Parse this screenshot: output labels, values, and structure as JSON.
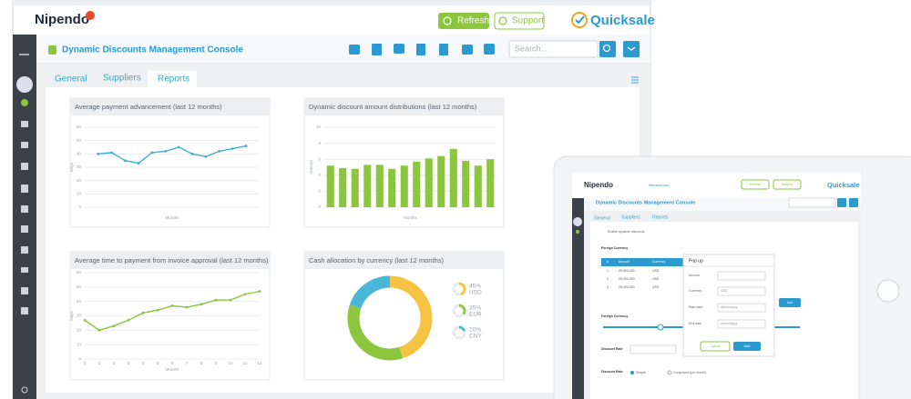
{
  "header": {
    "logo": "Nipendo",
    "refresh": "Refresh",
    "support": "Support",
    "brand": "Quicksale"
  },
  "console": {
    "title": "Dynamic Discounts Management Console",
    "search_placeholder": "Search..."
  },
  "tabs": [
    "General",
    "Suppliers",
    "Reports"
  ],
  "chart_data": [
    {
      "type": "line",
      "title": "Average payment advancement (last 12 months)",
      "x": [
        1,
        2,
        3,
        4,
        5,
        6,
        7,
        8,
        9,
        10,
        11,
        12
      ],
      "xlim": [
        0,
        13
      ],
      "values": [
        40,
        41,
        35,
        33,
        41,
        42,
        45,
        40,
        38,
        42,
        44,
        46
      ],
      "color": "#3fb0d0",
      "ylim": [
        0,
        60
      ],
      "yticks": [
        0,
        10,
        20,
        30,
        40,
        50,
        60
      ],
      "x_label": "Months",
      "y_label": "Days",
      "grid": true
    },
    {
      "type": "bar",
      "title": "Dynamic discount amount distributions (last 12 months)",
      "categories": [
        null,
        null,
        null,
        null,
        null,
        null,
        null,
        null,
        null,
        null,
        null,
        null,
        null,
        null
      ],
      "values": [
        5.2,
        4.9,
        4.8,
        5.3,
        5.3,
        4.8,
        5.2,
        5.7,
        6.1,
        6.4,
        7.3,
        5.8,
        5.2,
        6.0
      ],
      "color": "#8cc63f",
      "ylim": [
        0,
        10
      ],
      "yticks": [
        0,
        2,
        4,
        6,
        8,
        10
      ],
      "x_label": "Months",
      "y_label": "Amount",
      "grid": true
    },
    {
      "type": "line",
      "title": "Average time to payment from invoice approval (last 12 months)",
      "x": [
        0,
        1,
        2,
        3,
        4,
        5,
        6,
        7,
        8,
        9,
        10,
        11,
        12
      ],
      "xlim": [
        0,
        12
      ],
      "xticks": [
        0,
        1,
        2,
        3,
        4,
        5,
        6,
        7,
        8,
        9,
        10,
        11,
        12
      ],
      "values": [
        27,
        20,
        23,
        27,
        32,
        34,
        37,
        36,
        38,
        41,
        41,
        45,
        47
      ],
      "color": "#8cc63f",
      "ylim": [
        0,
        60
      ],
      "yticks": [
        0,
        10,
        20,
        30,
        40,
        50,
        60
      ],
      "x_label": "Months",
      "y_label": "Days",
      "grid": true
    },
    {
      "type": "donut",
      "title": "Cash allocation by currency (last 12 months)",
      "categories": [
        "USD",
        "EUR",
        "CNY"
      ],
      "values": [
        45,
        35,
        20
      ],
      "value_labels": [
        "45%",
        "35%",
        "20%"
      ],
      "colors": [
        "#f6c343",
        "#8cc63f",
        "#4ab6d8"
      ]
    }
  ],
  "tablet": {
    "logo": "Nipendo",
    "welcome": "Welcome back,",
    "refresh": "Refresh",
    "support": "Support",
    "brand": "Quicksale",
    "title": "Dynamic Discounts Management Console",
    "tabs": [
      "General",
      "Suppliers",
      "Reports"
    ],
    "enable": "Enable dynamic discounts",
    "foreign_currency": "Foreign Currency",
    "table_headers": [
      "#",
      "Amount",
      "Currency"
    ],
    "rows": [
      [
        "1",
        "25,000,000",
        "USD"
      ],
      [
        "2",
        "25,000,000",
        "USD"
      ],
      [
        "3",
        "25,000,000",
        "USD"
      ]
    ],
    "popup": {
      "title": "Pop up",
      "fields": [
        "Amount",
        "Currency",
        "Start date",
        "End date"
      ],
      "currency_value": "USD",
      "date_placeholder": "dd/mm/yyyy",
      "cancel": "Cancel",
      "add": "Add"
    },
    "add": "Add",
    "foreign_currency_2": "Foreign Currency",
    "discount_rate": "Discount Rate",
    "discount_rate_2": "Discount Rate",
    "simple": "Simple",
    "compound": "Compound (per month)"
  }
}
